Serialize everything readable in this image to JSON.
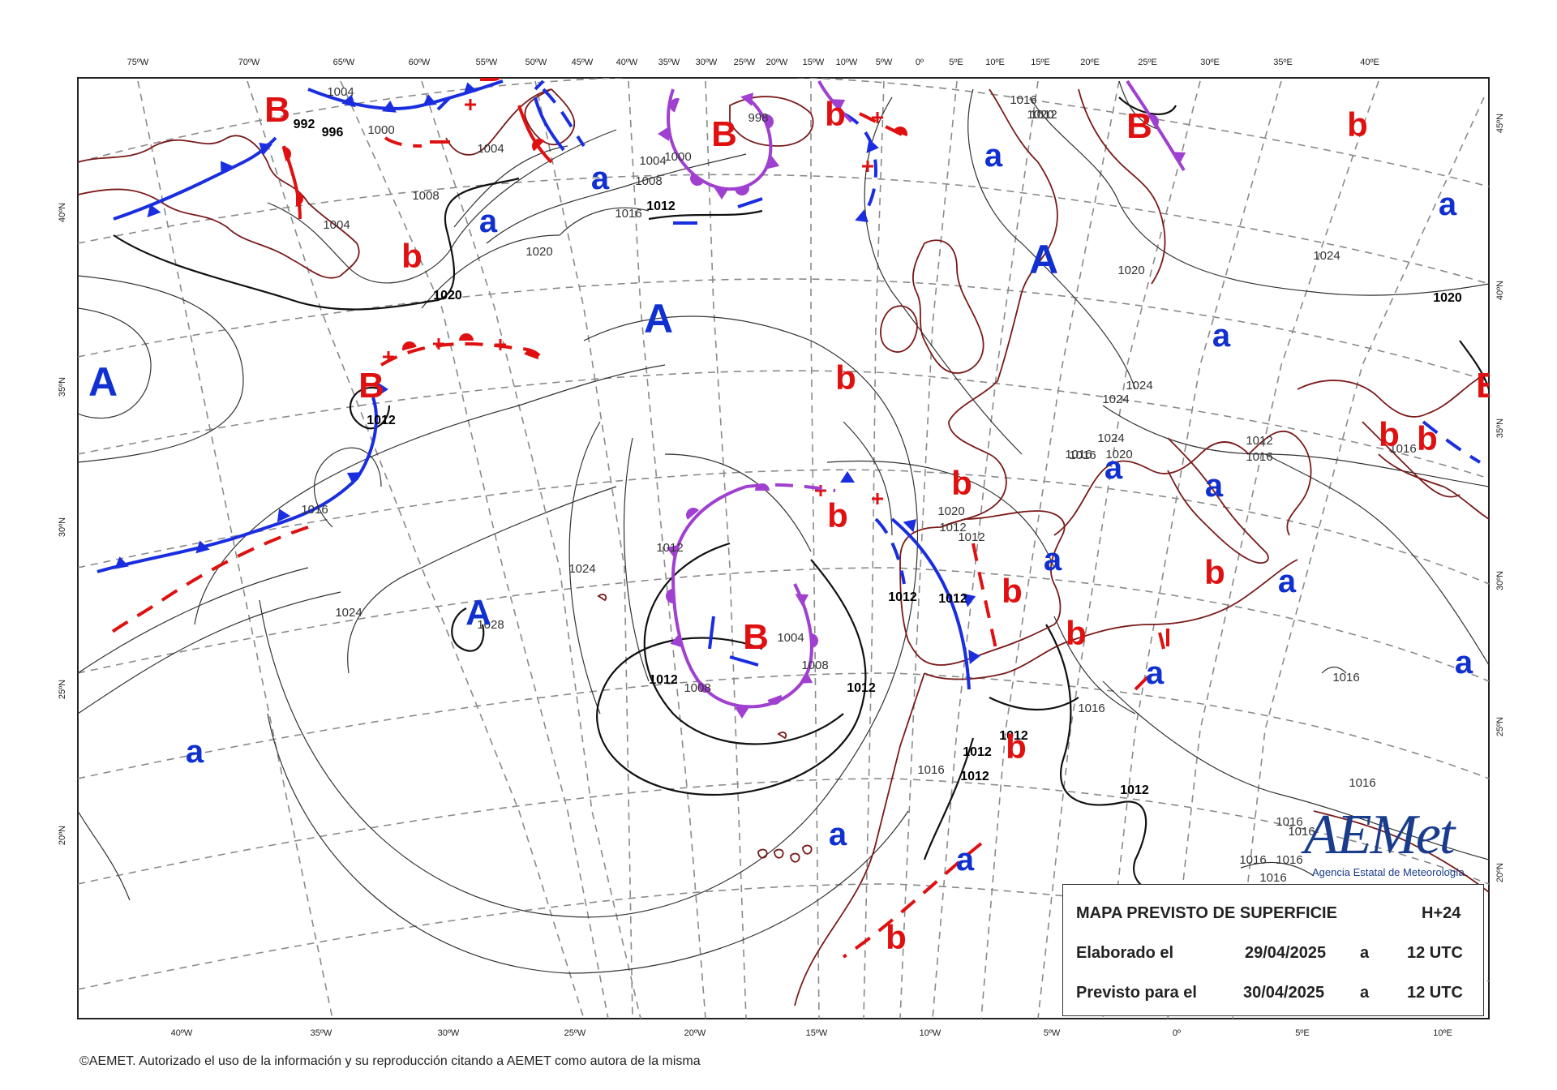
{
  "top_lon_labels": [
    "75ºW",
    "70ºW",
    "65ºW",
    "60ºW",
    "55ºW",
    "50ºW",
    "45ºW",
    "40ºW",
    "35ºW",
    "30ºW",
    "25ºW",
    "20ºW",
    "15ºW",
    "10ºW",
    "5ºW",
    "0º",
    "5ºE",
    "10ºE",
    "15ºE",
    "20ºE",
    "25ºE",
    "30ºE",
    "35ºE",
    "40ºE"
  ],
  "bottom_lon_labels": [
    "40ºW",
    "35ºW",
    "30ºW",
    "25ºW",
    "20ºW",
    "15ºW",
    "10ºW",
    "5ºW",
    "0º",
    "5ºE",
    "10ºE"
  ],
  "left_lat_labels": [
    "40ºN",
    "35ºN",
    "30ºN",
    "25ºN",
    "20ºN"
  ],
  "right_lat_labels": [
    "45ºN",
    "40ºN",
    "35ºN",
    "30ºN",
    "25ºN",
    "20ºN"
  ],
  "pressure_centers": [
    {
      "label": "B",
      "kind": "low",
      "color": "#e01010"
    },
    {
      "label": "B",
      "kind": "low",
      "color": "#e01010"
    },
    {
      "label": "B",
      "kind": "low",
      "color": "#e01010"
    },
    {
      "label": "B",
      "kind": "low",
      "color": "#e01010"
    },
    {
      "label": "B",
      "kind": "low",
      "color": "#e01010"
    },
    {
      "label": "B",
      "kind": "low",
      "color": "#e01010"
    },
    {
      "label": "B",
      "kind": "low",
      "color": "#e01010"
    },
    {
      "label": "A",
      "kind": "high",
      "color": "#1030d0"
    },
    {
      "label": "A",
      "kind": "high",
      "color": "#1030d0"
    },
    {
      "label": "A",
      "kind": "high",
      "color": "#1030d0"
    },
    {
      "label": "A",
      "kind": "high",
      "color": "#1030d0"
    },
    {
      "label": "b",
      "kind": "low",
      "color": "#e01010"
    },
    {
      "label": "b",
      "kind": "low",
      "color": "#e01010"
    },
    {
      "label": "b",
      "kind": "low",
      "color": "#e01010"
    },
    {
      "label": "b",
      "kind": "low",
      "color": "#e01010"
    },
    {
      "label": "b",
      "kind": "low",
      "color": "#e01010"
    },
    {
      "label": "b",
      "kind": "low",
      "color": "#e01010"
    },
    {
      "label": "b",
      "kind": "low",
      "color": "#e01010"
    },
    {
      "label": "b",
      "kind": "low",
      "color": "#e01010"
    },
    {
      "label": "b",
      "kind": "low",
      "color": "#e01010"
    },
    {
      "label": "b",
      "kind": "low",
      "color": "#e01010"
    },
    {
      "label": "b",
      "kind": "low",
      "color": "#e01010"
    },
    {
      "label": "b",
      "kind": "low",
      "color": "#e01010"
    },
    {
      "label": "b",
      "kind": "low",
      "color": "#e01010"
    },
    {
      "label": "a",
      "kind": "high",
      "color": "#1030d0"
    },
    {
      "label": "a",
      "kind": "high",
      "color": "#1030d0"
    },
    {
      "label": "a",
      "kind": "high",
      "color": "#1030d0"
    },
    {
      "label": "a",
      "kind": "high",
      "color": "#1030d0"
    },
    {
      "label": "a",
      "kind": "high",
      "color": "#1030d0"
    },
    {
      "label": "a",
      "kind": "high",
      "color": "#1030d0"
    },
    {
      "label": "a",
      "kind": "high",
      "color": "#1030d0"
    },
    {
      "label": "a",
      "kind": "high",
      "color": "#1030d0"
    },
    {
      "label": "a",
      "kind": "high",
      "color": "#1030d0"
    },
    {
      "label": "a",
      "kind": "high",
      "color": "#1030d0"
    },
    {
      "label": "a",
      "kind": "high",
      "color": "#1030d0"
    },
    {
      "label": "a",
      "kind": "high",
      "color": "#1030d0"
    },
    {
      "label": "a",
      "kind": "high",
      "color": "#1030d0"
    },
    {
      "label": "a",
      "kind": "high",
      "color": "#1030d0"
    }
  ],
  "isobar_labels": [
    "1004",
    "992",
    "996",
    "1000",
    "1004",
    "1008",
    "1004",
    "998",
    "1004",
    "1000",
    "1008",
    "1016",
    "1012",
    "1020",
    "1016",
    "1012",
    "1020",
    "1020",
    "1024",
    "1024",
    "1024",
    "1024",
    "1020",
    "1020",
    "1012",
    "1016",
    "1016",
    "1016",
    "1024",
    "1024",
    "1028",
    "1016",
    "1012",
    "1004",
    "1008",
    "1008",
    "1012",
    "1012",
    "1012",
    "1012",
    "1012",
    "1012",
    "1012",
    "1016",
    "1012",
    "1016",
    "1016",
    "1016",
    "1016",
    "1016",
    "1016",
    "1016",
    "1012",
    "1020",
    "1016",
    "1012",
    "1020",
    "1012",
    "1016"
  ],
  "colors": {
    "cold_front": "#1a2ee0",
    "warm_front": "#e01010",
    "occluded_front": "#a040d0",
    "coastline": "#7a1a1a",
    "isobar": "#222222",
    "graticule": "#888888"
  },
  "info": {
    "title": "MAPA PREVISTO DE SUPERFICIE",
    "horizon": "H+24",
    "made_label": "Elaborado el",
    "made_date": "29/04/2025",
    "made_at": "a",
    "made_time": "12 UTC",
    "valid_label": "Previsto para el",
    "valid_date": "30/04/2025",
    "valid_at": "a",
    "valid_time": "12 UTC"
  },
  "logo": {
    "name": "AEMet",
    "subtitle": "Agencia Estatal de Meteorología"
  },
  "footer": "©AEMET. Autorizado el uso de la información y su reproducción citando a AEMET como autora de la misma"
}
